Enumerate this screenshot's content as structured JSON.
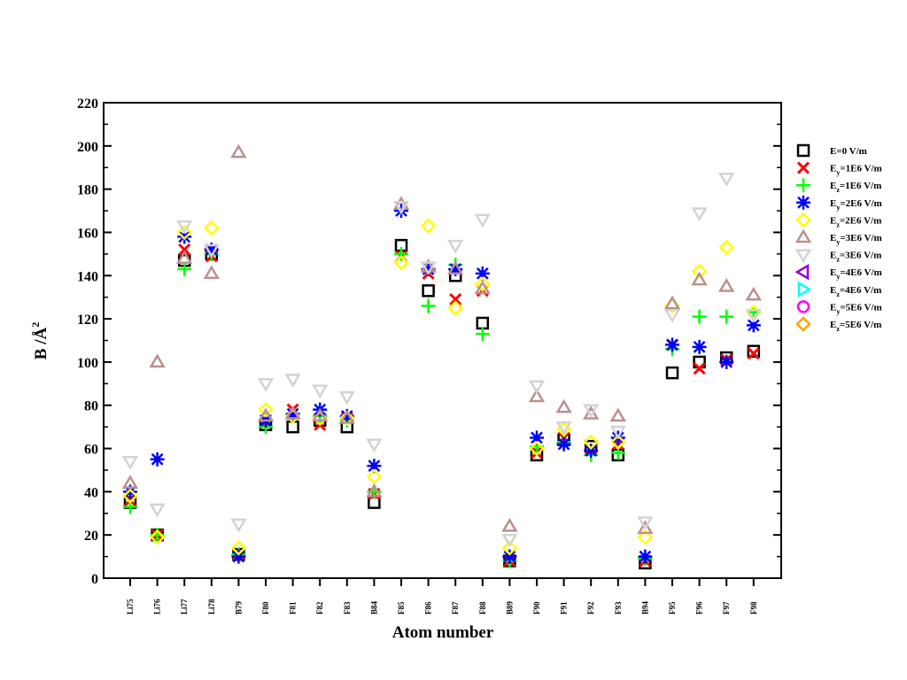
{
  "chart_data": {
    "type": "scatter",
    "xlabel": "Atom number",
    "ylabel": "B /Å",
    "ylabel_sup": "2",
    "ylim": [
      0,
      220
    ],
    "yticks": [
      "0",
      "20",
      "40",
      "60",
      "80",
      "100",
      "120",
      "140",
      "160",
      "180",
      "200",
      "220"
    ],
    "categories": [
      "Li75",
      "Li76",
      "Li77",
      "Li78",
      "B79",
      "F80",
      "F81",
      "F82",
      "F83",
      "B84",
      "F85",
      "F86",
      "F87",
      "F88",
      "B89",
      "F90",
      "F91",
      "F92",
      "F93",
      "B94",
      "F95",
      "F96",
      "F97",
      "F98"
    ],
    "legend_position": "right",
    "series": [
      {
        "name": "E=0 V/m",
        "label_main": "E",
        "label_sub": "",
        "label_rest": "=0 V/m",
        "marker": "square",
        "color": "#000000",
        "values": [
          35,
          20,
          147,
          150,
          11,
          71,
          70,
          73,
          70,
          35,
          154,
          133,
          140,
          118,
          8,
          57,
          64,
          61,
          57,
          7,
          95,
          100,
          102,
          105
        ]
      },
      {
        "name": "Ey=1E6 V/m",
        "label_main": "E",
        "label_sub": "y",
        "label_rest": "=1E6 V/m",
        "marker": "x",
        "color": "#ff0000",
        "values": [
          36,
          20,
          152,
          149,
          11,
          72,
          78,
          71,
          74,
          39,
          149,
          141,
          129,
          133,
          8,
          58,
          65,
          60,
          62,
          8,
          108,
          97,
          101,
          104
        ]
      },
      {
        "name": "Ez=1E6 V/m",
        "label_main": "E",
        "label_sub": "z",
        "label_rest": "=1E6 V/m",
        "marker": "plus",
        "color": "#00ff00",
        "values": [
          33,
          20,
          143,
          150,
          11,
          70,
          75,
          75,
          73,
          40,
          150,
          126,
          145,
          113,
          8,
          61,
          63,
          57,
          58,
          9,
          106,
          121,
          121,
          123
        ]
      },
      {
        "name": "Ey=2E6 V/m",
        "label_main": "E",
        "label_sub": "y",
        "label_rest": "=2E6 V/m",
        "marker": "asterisk",
        "color": "#0000ff",
        "values": [
          40,
          55,
          158,
          152,
          10,
          73,
          76,
          78,
          75,
          52,
          170,
          143,
          143,
          141,
          10,
          65,
          62,
          59,
          65,
          10,
          108,
          107,
          100,
          117
        ]
      },
      {
        "name": "Ez=2E6 V/m",
        "label_main": "E",
        "label_sub": "z",
        "label_rest": "=2E6 V/m",
        "marker": "diamond",
        "color": "#ffff00",
        "values": [
          38,
          19,
          160,
          162,
          14,
          78,
          75,
          74,
          74,
          47,
          146,
          163,
          125,
          136,
          14,
          60,
          69,
          63,
          63,
          19,
          126,
          142,
          153,
          123
        ]
      },
      {
        "name": "Ey=3E6 V/m",
        "label_main": "E",
        "label_sub": "y",
        "label_rest": "=3E6 V/m",
        "marker": "triangle-up",
        "color": "#bc8f8f",
        "values": [
          44,
          100,
          148,
          141,
          197,
          75,
          76,
          75,
          74,
          40,
          173,
          144,
          143,
          134,
          24,
          84,
          79,
          76,
          75,
          23,
          127,
          138,
          135,
          131
        ]
      },
      {
        "name": "Ez=3E6 V/m",
        "label_main": "E",
        "label_sub": "z",
        "label_rest": "=3E6 V/m",
        "marker": "triangle-down",
        "color": "#d3d3d3",
        "values": [
          54,
          32,
          163,
          152,
          25,
          90,
          92,
          87,
          84,
          62,
          172,
          144,
          154,
          166,
          18,
          89,
          70,
          78,
          68,
          26,
          122,
          169,
          185,
          122
        ]
      },
      {
        "name": "Ey=4E6 V/m",
        "label_main": "E",
        "label_sub": "y",
        "label_rest": "=4E6 V/m",
        "marker": "triangle-left",
        "color": "#9400d3",
        "values": []
      },
      {
        "name": "Ez=4E6 V/m",
        "label_main": "E",
        "label_sub": "z",
        "label_rest": "=4E6 V/m",
        "marker": "triangle-right",
        "color": "#00ffff",
        "values": []
      },
      {
        "name": "Ey=5E6 V/m",
        "label_main": "E",
        "label_sub": "y",
        "label_rest": "=5E6 V/m",
        "marker": "circle",
        "color": "#ff00ff",
        "values": []
      },
      {
        "name": "Ez=5E6 V/m",
        "label_main": "E",
        "label_sub": "z",
        "label_rest": "=5E6 V/m",
        "marker": "diamond",
        "color": "#ffa500",
        "values": []
      }
    ]
  }
}
